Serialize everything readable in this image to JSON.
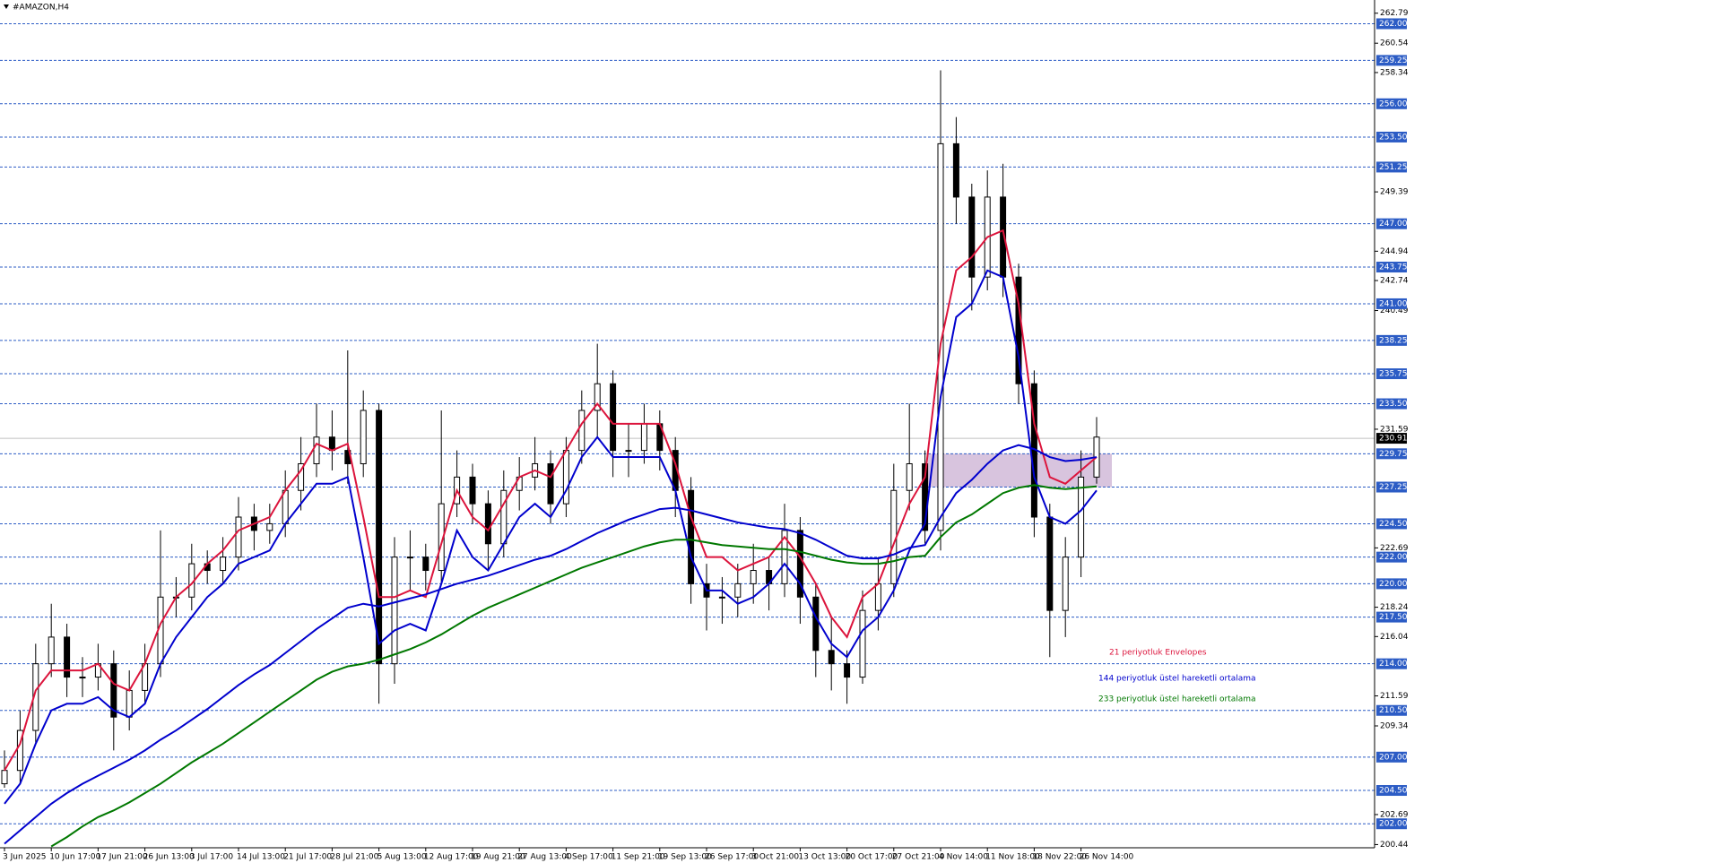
{
  "chart_data": {
    "type": "candlestick",
    "title": "#AMAZON,H4",
    "categories": [
      "3 Jun 2025",
      null,
      null,
      "10 Jun 17:00",
      null,
      null,
      "17 Jun 21:00",
      null,
      null,
      "26 Jun 13:00",
      null,
      null,
      "3 Jul 17:00",
      null,
      null,
      "14 Jul 13:00",
      null,
      null,
      "21 Jul 17:00",
      null,
      null,
      "28 Jul 21:00",
      null,
      null,
      "5 Aug 13:00",
      null,
      null,
      "12 Aug 17:00",
      null,
      null,
      "19 Aug 21:00",
      null,
      null,
      "27 Aug 13:00",
      null,
      null,
      "4 Sep 17:00",
      null,
      null,
      "11 Sep 21:00",
      null,
      null,
      "19 Sep 13:00",
      null,
      null,
      "26 Sep 17:00",
      null,
      null,
      "3 Oct 21:00",
      null,
      null,
      "13 Oct 13:00",
      null,
      null,
      "20 Oct 17:00",
      null,
      null,
      "27 Oct 21:00",
      null,
      null,
      "4 Nov 14:00",
      null,
      null,
      "11 Nov 18:00",
      null,
      null,
      "18 Nov 22:00",
      null,
      null,
      "26 Nov 14:00",
      null
    ],
    "open": [
      205,
      206,
      209,
      214,
      216,
      213,
      213,
      214,
      210,
      212,
      214,
      219,
      219,
      221.5,
      221,
      222,
      225,
      224,
      224.5,
      227,
      229,
      231,
      230,
      229,
      233,
      214,
      222,
      222,
      221,
      226,
      228,
      226,
      223,
      227,
      228,
      229,
      226,
      230,
      233,
      235,
      230,
      230,
      232,
      230,
      227,
      220,
      219,
      219,
      220,
      221,
      220,
      224,
      219,
      215,
      214,
      213,
      218,
      220,
      227,
      229,
      224,
      253,
      249,
      243,
      249,
      243,
      235,
      225,
      218,
      222,
      228
    ],
    "high": [
      207.5,
      210.5,
      215.5,
      218.5,
      217,
      214.5,
      215.5,
      215,
      213.5,
      215.5,
      224,
      220.5,
      223,
      222.5,
      223.5,
      226.5,
      226,
      226,
      228.5,
      231,
      233.5,
      233,
      237.5,
      234.5,
      233.5,
      223.5,
      224,
      223,
      233,
      230,
      229,
      227,
      228.5,
      229.5,
      231,
      230,
      231,
      234.5,
      238,
      236,
      232,
      233.5,
      233,
      231,
      228,
      221.5,
      220.5,
      221.5,
      223,
      222,
      226,
      225,
      220,
      217.5,
      215,
      219.5,
      222,
      229,
      233.5,
      230,
      258.5,
      255,
      250,
      251,
      251.5,
      244,
      236,
      226,
      223.5,
      230,
      232.5
    ],
    "low": [
      204.7,
      205,
      208,
      213,
      211.5,
      211.5,
      212,
      207.5,
      209,
      211,
      213,
      217.5,
      218,
      220,
      220,
      221,
      222.5,
      223,
      223.5,
      225.5,
      228,
      228.5,
      227.5,
      228,
      211,
      212.5,
      219.5,
      219.5,
      220,
      225,
      224.5,
      221,
      222,
      225.5,
      227,
      224.5,
      225,
      229,
      231,
      228,
      228,
      229,
      228.5,
      225,
      218.5,
      216.5,
      217,
      217.5,
      218.5,
      218,
      219,
      217,
      213,
      212,
      211,
      212.5,
      216.5,
      219,
      225.5,
      223,
      222.5,
      247,
      240.5,
      242,
      241.5,
      233.5,
      223.5,
      214.5,
      216,
      220.5,
      227.5
    ],
    "close": [
      206,
      209,
      214,
      216,
      213,
      213,
      214,
      210,
      212,
      214,
      219,
      219,
      221.5,
      221,
      222,
      225,
      224,
      224.5,
      227,
      229,
      231,
      230,
      229,
      233,
      214,
      222,
      222,
      221,
      226,
      228,
      226,
      223,
      227,
      228,
      229,
      226,
      230,
      233,
      235,
      230,
      230,
      232,
      230,
      227,
      220,
      219,
      219,
      220,
      221,
      220,
      224,
      219,
      215,
      214,
      213,
      218,
      220,
      227,
      229,
      224,
      253,
      249,
      243,
      249,
      243,
      235,
      225,
      218,
      222,
      228,
      231
    ],
    "series": [
      {
        "name": "21 periyotluk Envelopes",
        "color": "#dc143c",
        "values": [
          206,
          208,
          212,
          213.5,
          213.5,
          213.5,
          214,
          212.5,
          212,
          214,
          217,
          219,
          220,
          221.5,
          222.5,
          224,
          224.5,
          225,
          227,
          228.5,
          230.5,
          230,
          230.5,
          225,
          219,
          219,
          219.5,
          219,
          223,
          227,
          225,
          224,
          226,
          228,
          228.5,
          228,
          230,
          232,
          233.5,
          232,
          232,
          232,
          232,
          229,
          225,
          222,
          222,
          221,
          221.5,
          222,
          223.5,
          222,
          220,
          217.5,
          216,
          219,
          220,
          223,
          226,
          228,
          238,
          243.5,
          244.5,
          246,
          246.5,
          241,
          232,
          228,
          227.5,
          228.5,
          229.5
        ],
        "lower": [
          203.5,
          205,
          208,
          210.5,
          211,
          211,
          211.5,
          210.5,
          210,
          211,
          214,
          216,
          217.5,
          219,
          220,
          221.5,
          222,
          222.5,
          224.5,
          226,
          227.5,
          227.5,
          228,
          222,
          215.5,
          216.5,
          217,
          216.5,
          220,
          224,
          222,
          221,
          223,
          225,
          226,
          225,
          227,
          229.5,
          231,
          229.5,
          229.5,
          229.5,
          229.5,
          227,
          222,
          219.5,
          219.5,
          218.5,
          219,
          220,
          221.5,
          220,
          217.5,
          215.5,
          214.5,
          216.5,
          217.5,
          219.5,
          222.5,
          224.5,
          234,
          240,
          241,
          243.5,
          243,
          237,
          228,
          225,
          224.5,
          225.5,
          227
        ],
        "lower_color": "#0000cd"
      },
      {
        "name": "144 periyotluk üstel hareketli ortalama",
        "color": "#0000cd",
        "values": [
          200.5,
          201.5,
          202.5,
          203.5,
          204.3,
          205,
          205.6,
          206.2,
          206.8,
          207.5,
          208.3,
          209,
          209.8,
          210.6,
          211.5,
          212.4,
          213.2,
          213.9,
          214.8,
          215.7,
          216.6,
          217.4,
          218.2,
          218.5,
          218.3,
          218.6,
          218.9,
          219.2,
          219.6,
          220,
          220.3,
          220.6,
          221,
          221.4,
          221.8,
          222.1,
          222.6,
          223.2,
          223.8,
          224.3,
          224.8,
          225.2,
          225.6,
          225.7,
          225.5,
          225.2,
          224.9,
          224.6,
          224.4,
          224.2,
          224.1,
          223.8,
          223.3,
          222.7,
          222.1,
          221.9,
          221.9,
          222.2,
          222.7,
          222.9,
          225,
          226.8,
          227.8,
          229,
          230,
          230.4,
          230.1,
          229.5,
          229.2,
          229.3,
          229.5
        ]
      },
      {
        "name": "233 periyotluk üstel hareketli ortalama",
        "color": "#007800",
        "values": [
          null,
          null,
          null,
          200.3,
          201,
          201.8,
          202.5,
          203,
          203.6,
          204.3,
          205,
          205.8,
          206.6,
          207.3,
          208,
          208.8,
          209.6,
          210.4,
          211.2,
          212,
          212.8,
          213.4,
          213.8,
          214,
          214.3,
          214.7,
          215.1,
          215.6,
          216.2,
          216.9,
          217.6,
          218.2,
          218.7,
          219.2,
          219.7,
          220.2,
          220.7,
          221.2,
          221.6,
          222,
          222.4,
          222.8,
          223.1,
          223.3,
          223.3,
          223.1,
          222.9,
          222.8,
          222.7,
          222.6,
          222.6,
          222.4,
          222.1,
          221.8,
          221.6,
          221.5,
          221.5,
          221.7,
          222,
          222.1,
          223.5,
          224.6,
          225.2,
          226,
          226.8,
          227.2,
          227.4,
          227.2,
          227.1,
          227.2,
          227.3
        ]
      }
    ],
    "ylim": [
      200.2,
      263.78
    ],
    "yticks": [
      262.79,
      260.54,
      258.34,
      249.39,
      244.94,
      242.74,
      240.49,
      231.59,
      222.69,
      218.24,
      216.04,
      211.59,
      209.34,
      202.69,
      200.44
    ],
    "levels": [
      {
        "value": 262,
        "label": "262.00"
      },
      {
        "value": 259.25,
        "label": "259.25"
      },
      {
        "value": 256,
        "label": "256.00"
      },
      {
        "value": 253.5,
        "label": "253.50"
      },
      {
        "value": 251.25,
        "label": "251.25"
      },
      {
        "value": 247,
        "label": "247.00"
      },
      {
        "value": 243.75,
        "label": "243.75"
      },
      {
        "value": 241,
        "label": "241.00"
      },
      {
        "value": 238.25,
        "label": "238.25"
      },
      {
        "value": 235.75,
        "label": "235.75"
      },
      {
        "value": 233.5,
        "label": "233.50"
      },
      {
        "value": 229.75,
        "label": "229.75"
      },
      {
        "value": 227.25,
        "label": "227.25"
      },
      {
        "value": 224.5,
        "label": "224.50"
      },
      {
        "value": 222,
        "label": "222.00"
      },
      {
        "value": 220,
        "label": "220.00"
      },
      {
        "value": 217.5,
        "label": "217.50"
      },
      {
        "value": 214,
        "label": "214.00"
      },
      {
        "value": 210.5,
        "label": "210.50"
      },
      {
        "value": 207,
        "label": "207.00"
      },
      {
        "value": 204.5,
        "label": "204.50"
      },
      {
        "value": 202,
        "label": "202.00"
      }
    ],
    "level_color": "#2c5cc5",
    "current_price": 230.91,
    "zone": [
      227.25,
      229.75
    ],
    "zone_color": "#d8c4de"
  }
}
